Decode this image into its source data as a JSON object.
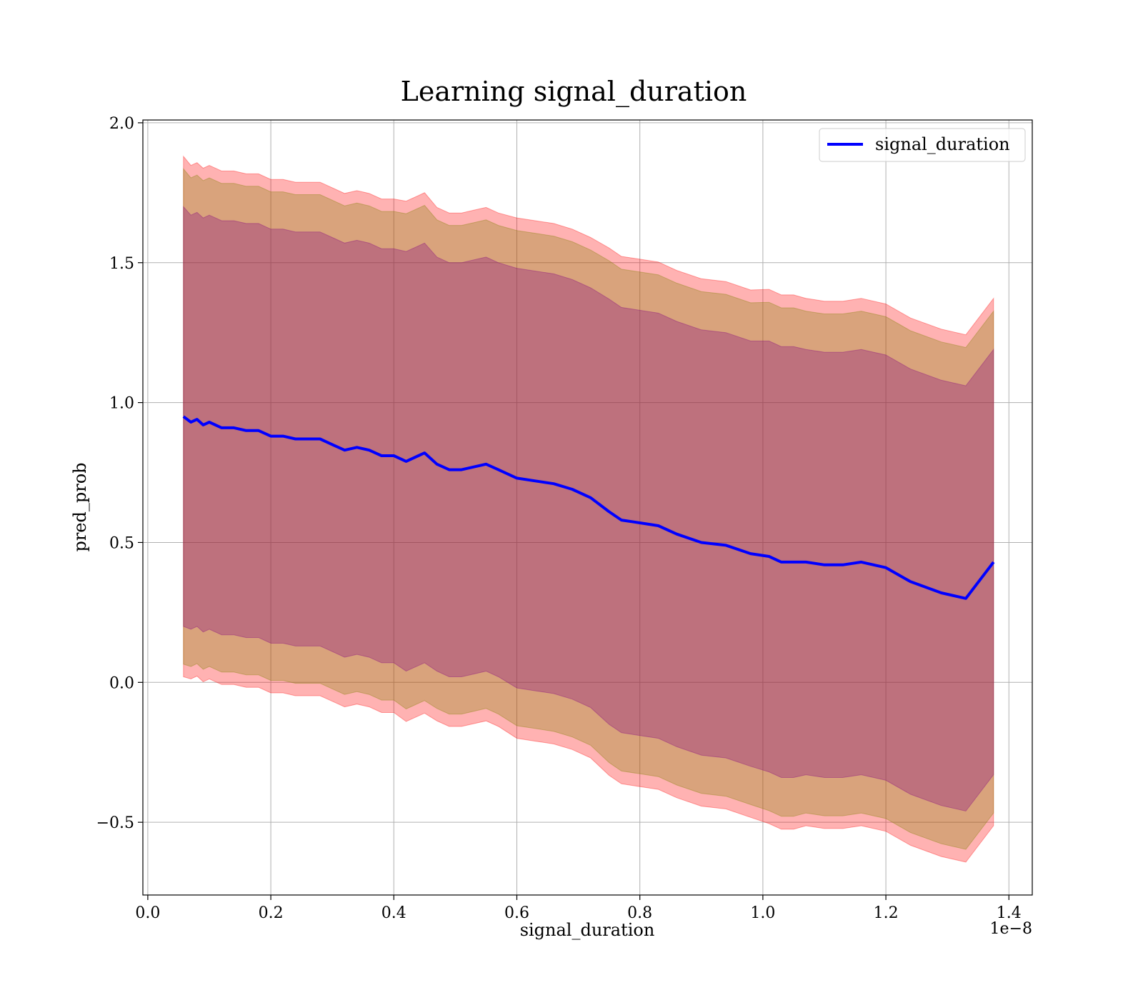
{
  "chart_data": {
    "type": "line",
    "title": "Learning signal_duration",
    "xlabel": "signal_duration",
    "ylabel": "pred_prob",
    "x_offset_text": "1e−8",
    "xlim": [
      -0.008,
      1.438
    ],
    "ylim": [
      -0.76,
      2.01
    ],
    "x_ticks": [
      0.0,
      0.2,
      0.4,
      0.6,
      0.8,
      1.0,
      1.2,
      1.4
    ],
    "x_tick_labels": [
      "0.0",
      "0.2",
      "0.4",
      "0.6",
      "0.8",
      "1.0",
      "1.2",
      "1.4"
    ],
    "y_ticks": [
      -0.5,
      0.0,
      0.5,
      1.0,
      1.5,
      2.0
    ],
    "y_tick_labels": [
      "−0.5",
      "0.0",
      "0.5",
      "1.0",
      "1.5",
      "2.0"
    ],
    "grid": true,
    "legend": {
      "position": "top-right",
      "entries": [
        "signal_duration"
      ]
    },
    "colors": {
      "line": "#0000ff",
      "band_outer": "#ff0000",
      "band_middle": "#808000",
      "band_inner": "#800080"
    },
    "series": [
      {
        "name": "signal_duration",
        "x": [
          0.058,
          0.07,
          0.08,
          0.09,
          0.1,
          0.12,
          0.14,
          0.16,
          0.18,
          0.2,
          0.22,
          0.24,
          0.26,
          0.28,
          0.3,
          0.32,
          0.34,
          0.36,
          0.38,
          0.4,
          0.42,
          0.44,
          0.45,
          0.47,
          0.49,
          0.51,
          0.53,
          0.55,
          0.57,
          0.6,
          0.63,
          0.66,
          0.69,
          0.72,
          0.75,
          0.77,
          0.8,
          0.83,
          0.86,
          0.9,
          0.94,
          0.98,
          1.01,
          1.03,
          1.05,
          1.07,
          1.1,
          1.13,
          1.16,
          1.2,
          1.24,
          1.29,
          1.33,
          1.375
        ],
        "y": [
          0.95,
          0.93,
          0.94,
          0.92,
          0.93,
          0.91,
          0.91,
          0.9,
          0.9,
          0.88,
          0.88,
          0.87,
          0.87,
          0.87,
          0.85,
          0.83,
          0.84,
          0.83,
          0.81,
          0.81,
          0.79,
          0.81,
          0.82,
          0.78,
          0.76,
          0.76,
          0.77,
          0.78,
          0.76,
          0.73,
          0.72,
          0.71,
          0.69,
          0.66,
          0.61,
          0.58,
          0.57,
          0.56,
          0.53,
          0.5,
          0.49,
          0.46,
          0.45,
          0.43,
          0.43,
          0.43,
          0.42,
          0.42,
          0.43,
          0.41,
          0.36,
          0.32,
          0.3,
          0.43
        ],
        "std": [
          0.75,
          0.74,
          0.74,
          0.74,
          0.74,
          0.74,
          0.74,
          0.74,
          0.74,
          0.74,
          0.74,
          0.74,
          0.74,
          0.74,
          0.74,
          0.74,
          0.74,
          0.74,
          0.74,
          0.74,
          0.75,
          0.75,
          0.75,
          0.74,
          0.74,
          0.74,
          0.74,
          0.74,
          0.74,
          0.75,
          0.75,
          0.75,
          0.75,
          0.75,
          0.76,
          0.76,
          0.76,
          0.76,
          0.76,
          0.76,
          0.76,
          0.76,
          0.77,
          0.77,
          0.77,
          0.76,
          0.76,
          0.76,
          0.76,
          0.76,
          0.76,
          0.76,
          0.76,
          0.76
        ]
      }
    ]
  }
}
